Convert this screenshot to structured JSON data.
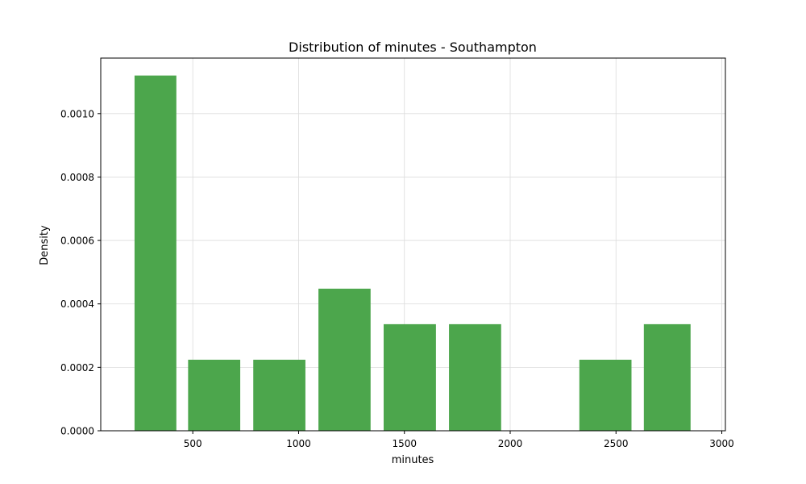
{
  "chart_data": {
    "type": "bar",
    "title": "Distribution of minutes - Southampton",
    "xlabel": "minutes",
    "ylabel": "Density",
    "color": "#4ca64c",
    "grid": true,
    "xlim": [
      65,
      3017
    ],
    "ylim": [
      0,
      0.001175
    ],
    "xticks": [
      500,
      1000,
      1500,
      2000,
      2500,
      3000
    ],
    "yticks": [
      0.0,
      0.0002,
      0.0004,
      0.0006,
      0.0008,
      0.001
    ],
    "ytick_labels": [
      "0.0000",
      "0.0002",
      "0.0004",
      "0.0006",
      "0.0008",
      "0.0010"
    ],
    "bins": [
      {
        "x0": 200,
        "x1": 447,
        "value": 0.00112
      },
      {
        "x0": 447,
        "x1": 755,
        "value": 0.000224
      },
      {
        "x0": 755,
        "x1": 1063,
        "value": 0.000224
      },
      {
        "x0": 1063,
        "x1": 1371,
        "value": 0.000448
      },
      {
        "x0": 1371,
        "x1": 1680,
        "value": 0.000336
      },
      {
        "x0": 1680,
        "x1": 1988,
        "value": 0.000336
      },
      {
        "x0": 1988,
        "x1": 2296,
        "value": 0.0
      },
      {
        "x0": 2296,
        "x1": 2604,
        "value": 0.000224
      },
      {
        "x0": 2604,
        "x1": 2880,
        "value": 0.000336
      }
    ]
  }
}
